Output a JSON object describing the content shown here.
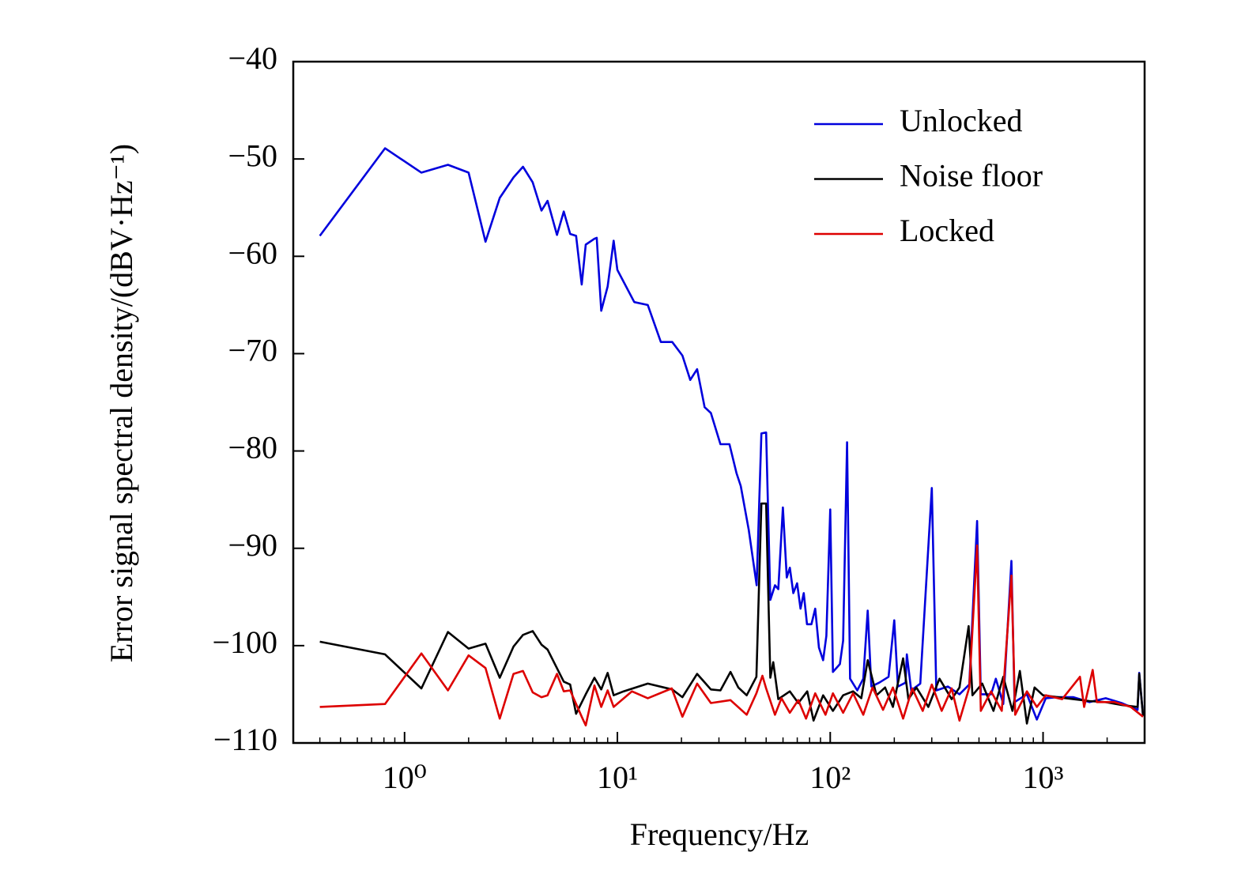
{
  "chart_data": {
    "type": "line",
    "x_label": "Frequency/Hz",
    "y_label": "Error signal spectral density/(dBV·Hz⁻¹)",
    "x_scale": "log",
    "xlim": [
      0.3,
      3000
    ],
    "ylim": [
      -110,
      -40
    ],
    "xticks": [
      {
        "value": 1,
        "label": "10⁰"
      },
      {
        "value": 10,
        "label": "10¹"
      },
      {
        "value": 100,
        "label": "10²"
      },
      {
        "value": 1000,
        "label": "10³"
      }
    ],
    "yticks": [
      {
        "value": -40,
        "label": "−40"
      },
      {
        "value": -50,
        "label": "−50"
      },
      {
        "value": -60,
        "label": "−60"
      },
      {
        "value": -70,
        "label": "−70"
      },
      {
        "value": -80,
        "label": "−80"
      },
      {
        "value": -90,
        "label": "−90"
      },
      {
        "value": -100,
        "label": "−100"
      },
      {
        "value": -110,
        "label": "−110"
      }
    ],
    "grid": false,
    "legend": "upper right",
    "series": [
      {
        "name": "Unlocked",
        "color": "#0000dd",
        "x": [
          0.4,
          0.81,
          1.2,
          1.6,
          2.0,
          2.4,
          2.8,
          3.25,
          3.6,
          4.0,
          4.4,
          4.7,
          5.2,
          5.6,
          6.0,
          6.4,
          6.8,
          7.1,
          7.8,
          8.0,
          8.4,
          9.0,
          9.6,
          10.0,
          12.0,
          13.9,
          16.0,
          18.1,
          20.2,
          22.0,
          23.7,
          25.7,
          27.5,
          30.5,
          33.6,
          36.3,
          38.0,
          41.4,
          45.1,
          47.5,
          50.0,
          52.3,
          55.0,
          57.0,
          59.9,
          62.5,
          64.6,
          67.1,
          69.9,
          72.5,
          75.1,
          77.8,
          81.6,
          85.0,
          88.5,
          92.6,
          95.9,
          100,
          103,
          111,
          115,
          120,
          124,
          134,
          143,
          150,
          156,
          170,
          188,
          200,
          208,
          226,
          229,
          240,
          265,
          300,
          315,
          357,
          405,
          450,
          490,
          510,
          570,
          600,
          650,
          710,
          735,
          840,
          935,
          1030,
          1170,
          1390,
          1650,
          1970,
          2340,
          2780,
          2830,
          2950
        ],
        "values": [
          -57.9,
          -48.9,
          -51.4,
          -50.6,
          -51.4,
          -58.5,
          -54,
          -51.9,
          -50.8,
          -52.4,
          -55.3,
          -54.3,
          -57.8,
          -55.4,
          -57.7,
          -57.9,
          -62.9,
          -58.8,
          -58.2,
          -58.1,
          -65.6,
          -63.1,
          -58.4,
          -61.4,
          -64.7,
          -65.0,
          -68.8,
          -68.8,
          -70.2,
          -72.7,
          -71.6,
          -75.5,
          -76.1,
          -79.3,
          -79.3,
          -82.3,
          -83.6,
          -88.1,
          -93.8,
          -78.2,
          -78.1,
          -95.3,
          -93.8,
          -94.2,
          -85.8,
          -93.0,
          -92.0,
          -94.6,
          -93.6,
          -96.2,
          -94.6,
          -97.8,
          -97.8,
          -96.2,
          -100.2,
          -101.5,
          -99.0,
          -86,
          -102.7,
          -101.9,
          -99.5,
          -79.1,
          -103.4,
          -104.6,
          -103.4,
          -96.4,
          -104.2,
          -103.8,
          -103.2,
          -97.4,
          -104.2,
          -103.8,
          -100.9,
          -104.6,
          -103.9,
          -83.8,
          -104.6,
          -104.2,
          -105,
          -104,
          -87.2,
          -105,
          -105,
          -103.4,
          -106,
          -91.3,
          -105.8,
          -105,
          -107.6,
          -105.4,
          -105.3,
          -105.3,
          -105.8,
          -105.4,
          -105.9,
          -106.6,
          -102.8,
          -107.2
        ]
      },
      {
        "name": "Noise floor",
        "color": "#000000",
        "x": [
          0.4,
          0.81,
          1.2,
          1.6,
          2.0,
          2.4,
          2.8,
          3.25,
          3.6,
          4.0,
          4.4,
          4.7,
          5.6,
          6.0,
          6.4,
          7.1,
          7.8,
          8.4,
          9.0,
          9.6,
          10.7,
          13.9,
          18.1,
          20.2,
          23.7,
          27.5,
          30.5,
          34,
          37,
          40.5,
          45,
          47.5,
          50,
          52.3,
          54,
          57,
          64.6,
          70.8,
          78,
          83.5,
          92.6,
          103,
          115,
          128,
          140,
          150,
          165,
          181,
          197,
          220,
          233,
          254,
          289,
          326,
          372,
          405,
          447,
          466,
          518,
          585,
          650,
          718,
          778,
          840,
          912,
          1000,
          1170,
          1390,
          1650,
          1970,
          2340,
          2780,
          2830,
          2950
        ],
        "values": [
          -99.6,
          -100.9,
          -104.4,
          -98.6,
          -100.3,
          -99.8,
          -103.3,
          -100.1,
          -98.9,
          -98.5,
          -99.9,
          -100.4,
          -103.7,
          -104,
          -107,
          -105,
          -103.3,
          -104.5,
          -102.8,
          -105.1,
          -104.7,
          -103.9,
          -104.5,
          -105.3,
          -102.9,
          -104.5,
          -104.6,
          -102.7,
          -104.3,
          -105.1,
          -103.2,
          -85.4,
          -85.4,
          -103.3,
          -101.7,
          -105.5,
          -104.7,
          -105.9,
          -104.7,
          -107.7,
          -105.1,
          -106.7,
          -105.1,
          -104.7,
          -105.4,
          -101.5,
          -105.1,
          -104.3,
          -106.3,
          -101.3,
          -105.5,
          -104.3,
          -106.3,
          -103.4,
          -105.5,
          -104.3,
          -98.0,
          -105.1,
          -103.9,
          -106.7,
          -103.2,
          -106.7,
          -102.6,
          -108,
          -104.3,
          -105.1,
          -105.3,
          -105.5,
          -105.7,
          -105.8,
          -106.1,
          -106.3,
          -102.9,
          -107.2
        ]
      },
      {
        "name": "Locked",
        "color": "#dd0000",
        "x": [
          0.4,
          0.81,
          1.2,
          1.6,
          2.0,
          2.4,
          2.8,
          3.25,
          3.6,
          4.0,
          4.4,
          4.7,
          5.2,
          5.6,
          6.0,
          6.8,
          7.1,
          7.8,
          8.4,
          9.0,
          9.6,
          11.7,
          13.9,
          18,
          20.2,
          23.7,
          27.5,
          34,
          40.5,
          45,
          48,
          50,
          55,
          59,
          64.6,
          70.8,
          77,
          85,
          95,
          103,
          115,
          128,
          143,
          158,
          177,
          197,
          220,
          243,
          272,
          300,
          334,
          372,
          405,
          450,
          490,
          510,
          570,
          640,
          710,
          740,
          840,
          935,
          1030,
          1230,
          1490,
          1560,
          1710,
          1790,
          2160,
          2580,
          2950
        ],
        "values": [
          -106.3,
          -106.0,
          -100.8,
          -104.6,
          -101.0,
          -102.3,
          -107.5,
          -102.9,
          -102.6,
          -104.8,
          -105.3,
          -105.1,
          -102.9,
          -104.7,
          -104.6,
          -107.3,
          -108.2,
          -104.1,
          -106.3,
          -104.6,
          -106.3,
          -104.7,
          -105.4,
          -104.4,
          -107.3,
          -103.9,
          -105.9,
          -105.6,
          -107.1,
          -104.9,
          -103.1,
          -104.4,
          -107.1,
          -105.4,
          -106.9,
          -105.6,
          -107.5,
          -104.9,
          -107.1,
          -104.9,
          -106.9,
          -104.9,
          -107.1,
          -104.3,
          -106.6,
          -104.3,
          -107.5,
          -104.4,
          -106.7,
          -104.0,
          -106.7,
          -104.4,
          -107.7,
          -104.3,
          -89.7,
          -106.7,
          -104.7,
          -106.7,
          -92.8,
          -107.1,
          -104.7,
          -106.3,
          -105.1,
          -105.5,
          -103.2,
          -106.3,
          -102.5,
          -105.8,
          -105.8,
          -106.3,
          -107.3
        ]
      }
    ]
  }
}
